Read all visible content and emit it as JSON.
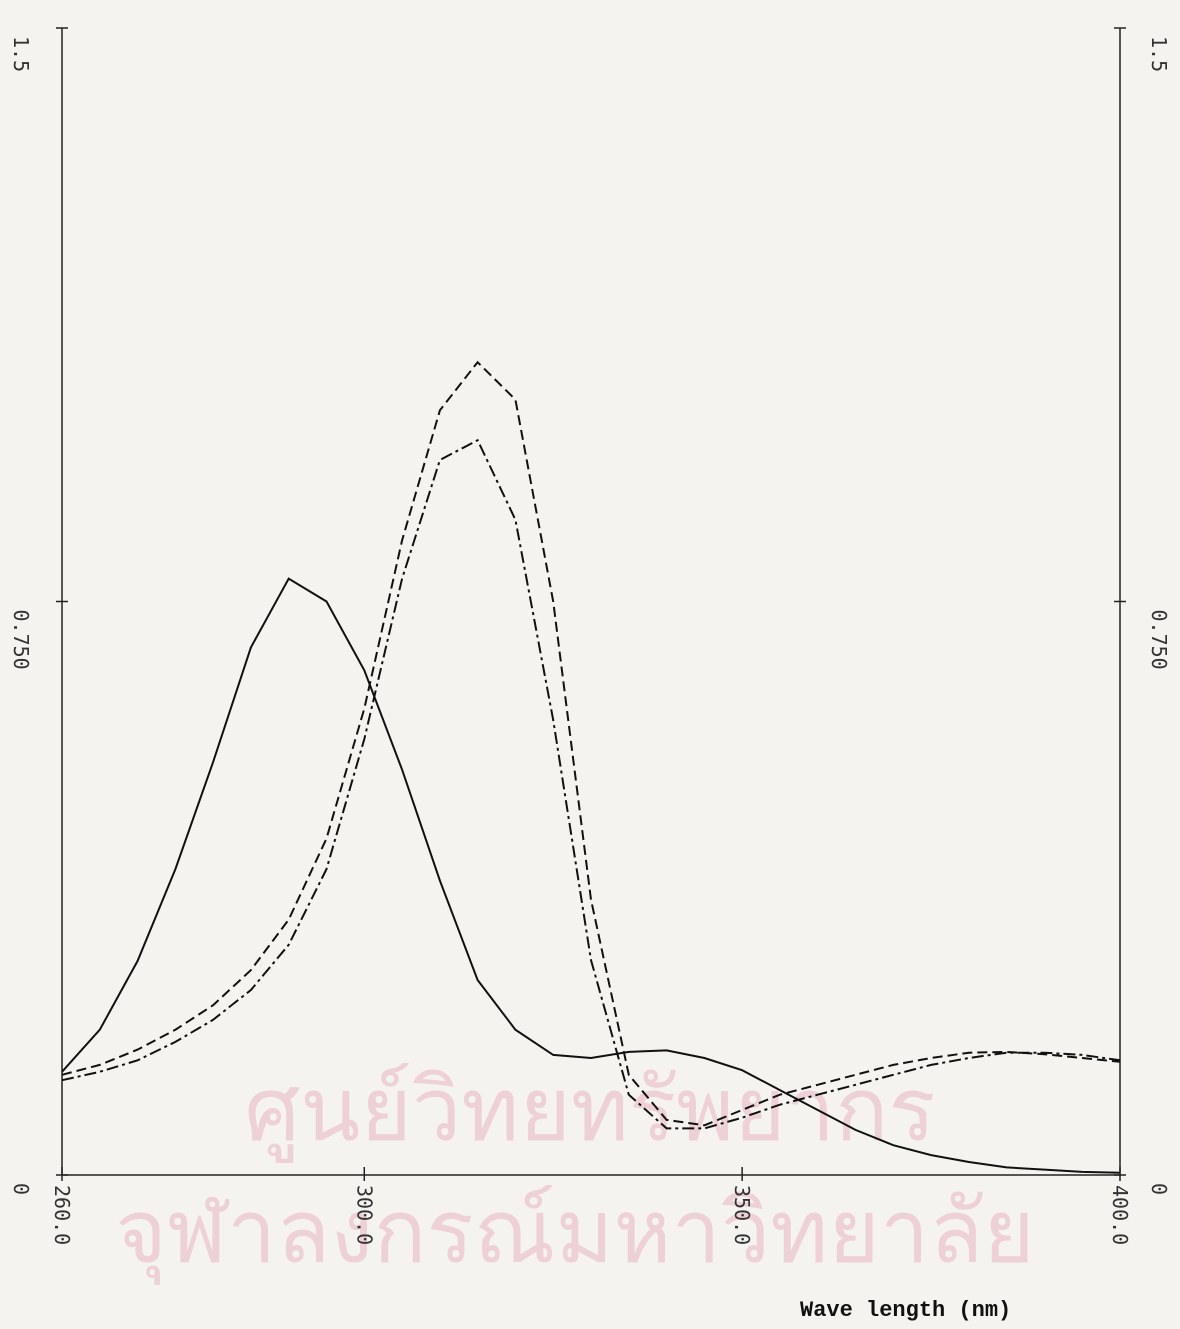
{
  "chart_data": {
    "type": "line",
    "x_label": "Wave length (nm)",
    "x": [
      260,
      265,
      270,
      275,
      280,
      285,
      290,
      295,
      300,
      305,
      310,
      315,
      320,
      325,
      330,
      335,
      340,
      345,
      350,
      355,
      360,
      365,
      370,
      375,
      380,
      385,
      390,
      395,
      400
    ],
    "series": [
      {
        "color": "#111111",
        "dash": "solid",
        "values": [
          0.135,
          0.19,
          0.28,
          0.4,
          0.54,
          0.69,
          0.78,
          0.75,
          0.66,
          0.53,
          0.385,
          0.255,
          0.19,
          0.157,
          0.153,
          0.161,
          0.163,
          0.153,
          0.137,
          0.111,
          0.085,
          0.059,
          0.039,
          0.026,
          0.017,
          0.01,
          0.007,
          0.004,
          0.003
        ]
      },
      {
        "color": "#111111",
        "dash": "dashed",
        "values": [
          0.131,
          0.144,
          0.164,
          0.19,
          0.222,
          0.268,
          0.334,
          0.44,
          0.61,
          0.83,
          1.0,
          1.063,
          1.014,
          0.75,
          0.36,
          0.131,
          0.072,
          0.065,
          0.085,
          0.105,
          0.118,
          0.131,
          0.144,
          0.153,
          0.16,
          0.161,
          0.158,
          0.153,
          0.148
        ]
      },
      {
        "color": "#111111",
        "dash": "dashdot",
        "values": [
          0.124,
          0.135,
          0.15,
          0.174,
          0.203,
          0.242,
          0.301,
          0.4,
          0.57,
          0.78,
          0.935,
          0.961,
          0.857,
          0.595,
          0.281,
          0.105,
          0.061,
          0.061,
          0.075,
          0.092,
          0.105,
          0.118,
          0.131,
          0.144,
          0.153,
          0.16,
          0.16,
          0.157,
          0.15
        ]
      }
    ],
    "xlim": [
      260,
      400
    ],
    "xticks": [
      {
        "value": 260,
        "label": "260.0"
      },
      {
        "value": 300,
        "label": "300.0"
      },
      {
        "value": 350,
        "label": "350.0"
      },
      {
        "value": 400,
        "label": "400.0"
      }
    ],
    "ylim": [
      0,
      1.5
    ],
    "yticks": [
      0,
      {
        "value": 0.75,
        "label": "0.750"
      },
      1.5
    ],
    "y2lim": [
      0,
      1.5
    ],
    "y2ticks": [
      0,
      {
        "value": 0.75,
        "label": "0.750"
      },
      1.5
    ]
  },
  "watermark": [
    "ศูนย์วิทยทรัพยากร",
    "จุฬาลงกรณ์มหาวิทยาลัย"
  ]
}
